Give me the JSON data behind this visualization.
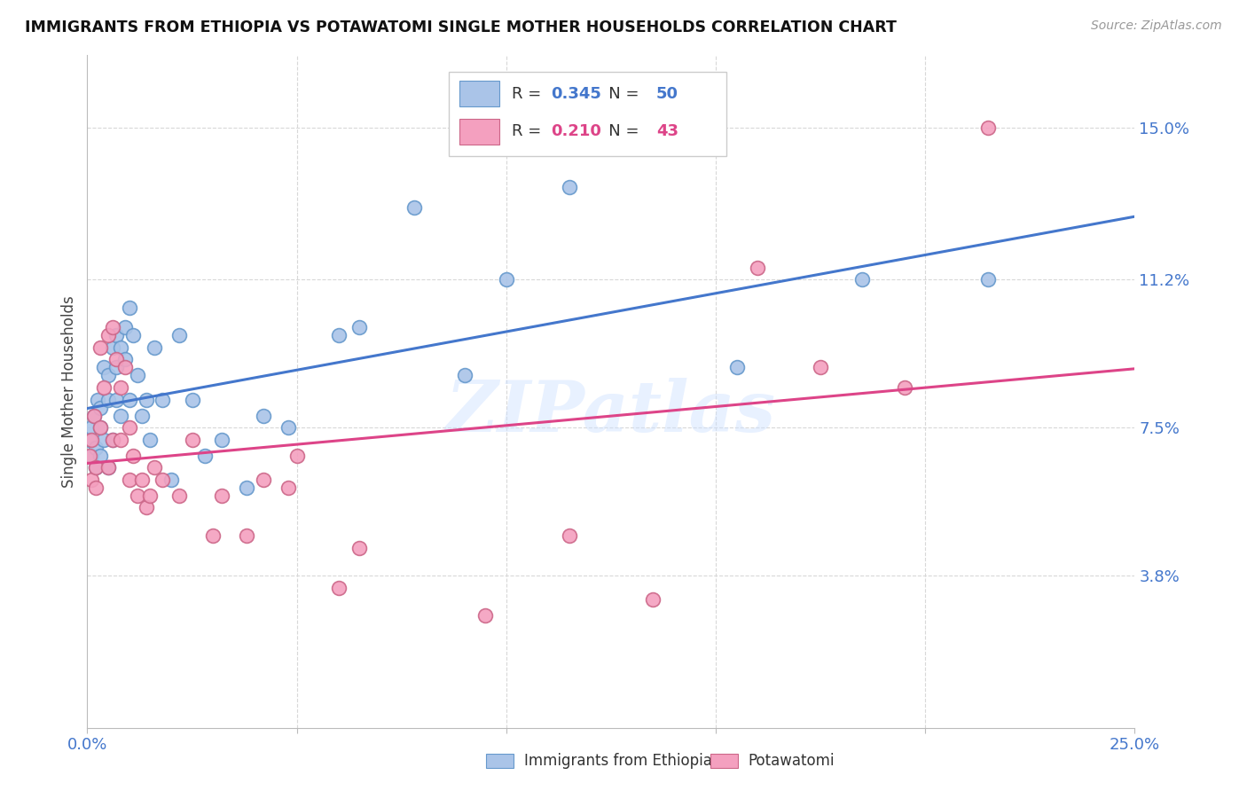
{
  "title": "IMMIGRANTS FROM ETHIOPIA VS POTAWATOMI SINGLE MOTHER HOUSEHOLDS CORRELATION CHART",
  "source": "Source: ZipAtlas.com",
  "ylabel": "Single Mother Households",
  "xlim": [
    0.0,
    0.25
  ],
  "ylim": [
    0.0,
    0.168
  ],
  "ytick_labels_right": [
    "15.0%",
    "11.2%",
    "7.5%",
    "3.8%"
  ],
  "ytick_values_right": [
    0.15,
    0.112,
    0.075,
    0.038
  ],
  "grid_color": "#d8d8d8",
  "background_color": "#ffffff",
  "watermark": "ZIPatlas",
  "series1_color": "#aac4e8",
  "series1_line_color": "#4477cc",
  "series1_label": "Immigrants from Ethiopia",
  "series1_R": "0.345",
  "series1_N": "50",
  "series2_color": "#f4a0bf",
  "series2_line_color": "#dd4488",
  "series2_label": "Potawatomi",
  "series2_R": "0.210",
  "series2_N": "43",
  "series1_x": [
    0.0005,
    0.001,
    0.001,
    0.0015,
    0.002,
    0.002,
    0.0025,
    0.003,
    0.003,
    0.003,
    0.004,
    0.004,
    0.005,
    0.005,
    0.005,
    0.006,
    0.006,
    0.007,
    0.007,
    0.007,
    0.008,
    0.008,
    0.009,
    0.009,
    0.01,
    0.01,
    0.011,
    0.012,
    0.013,
    0.014,
    0.015,
    0.016,
    0.018,
    0.02,
    0.022,
    0.025,
    0.028,
    0.032,
    0.038,
    0.042,
    0.048,
    0.06,
    0.065,
    0.078,
    0.09,
    0.1,
    0.115,
    0.155,
    0.185,
    0.215
  ],
  "series1_y": [
    0.072,
    0.068,
    0.075,
    0.078,
    0.07,
    0.065,
    0.082,
    0.08,
    0.075,
    0.068,
    0.09,
    0.072,
    0.088,
    0.082,
    0.065,
    0.095,
    0.072,
    0.098,
    0.09,
    0.082,
    0.095,
    0.078,
    0.1,
    0.092,
    0.105,
    0.082,
    0.098,
    0.088,
    0.078,
    0.082,
    0.072,
    0.095,
    0.082,
    0.062,
    0.098,
    0.082,
    0.068,
    0.072,
    0.06,
    0.078,
    0.075,
    0.098,
    0.1,
    0.13,
    0.088,
    0.112,
    0.135,
    0.09,
    0.112,
    0.112
  ],
  "series2_x": [
    0.0005,
    0.001,
    0.001,
    0.0015,
    0.002,
    0.002,
    0.003,
    0.003,
    0.004,
    0.005,
    0.005,
    0.006,
    0.006,
    0.007,
    0.008,
    0.008,
    0.009,
    0.01,
    0.01,
    0.011,
    0.012,
    0.013,
    0.014,
    0.015,
    0.016,
    0.018,
    0.022,
    0.025,
    0.03,
    0.032,
    0.038,
    0.042,
    0.048,
    0.05,
    0.06,
    0.065,
    0.095,
    0.115,
    0.135,
    0.16,
    0.175,
    0.195,
    0.215
  ],
  "series2_y": [
    0.068,
    0.072,
    0.062,
    0.078,
    0.065,
    0.06,
    0.095,
    0.075,
    0.085,
    0.098,
    0.065,
    0.1,
    0.072,
    0.092,
    0.085,
    0.072,
    0.09,
    0.075,
    0.062,
    0.068,
    0.058,
    0.062,
    0.055,
    0.058,
    0.065,
    0.062,
    0.058,
    0.072,
    0.048,
    0.058,
    0.048,
    0.062,
    0.06,
    0.068,
    0.035,
    0.045,
    0.028,
    0.048,
    0.032,
    0.115,
    0.09,
    0.085,
    0.15
  ]
}
